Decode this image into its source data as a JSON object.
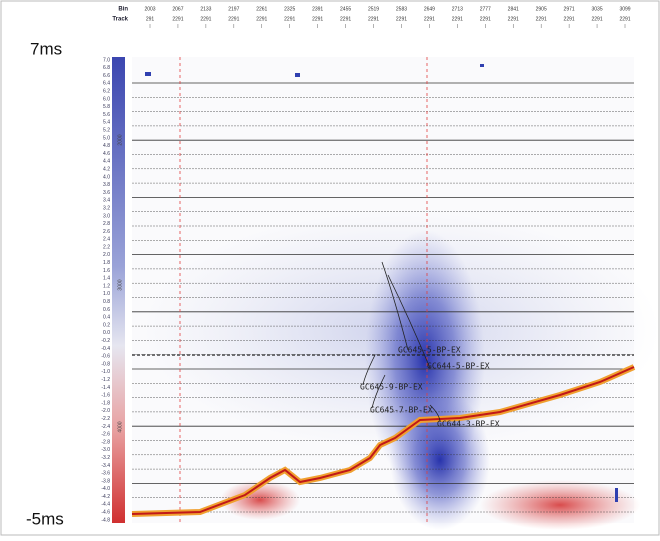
{
  "axis_labels": {
    "top": "7ms",
    "bottom": "-5ms"
  },
  "header": {
    "bin_label": "Bin",
    "track_label": "Track",
    "bins": [
      "2003",
      "2067",
      "2133",
      "2197",
      "2261",
      "2325",
      "2391",
      "2455",
      "2519",
      "2583",
      "2649",
      "2713",
      "2777",
      "2841",
      "2905",
      "2971",
      "3035",
      "3099"
    ],
    "tracks": [
      "291",
      "2291",
      "2291",
      "2291",
      "2291",
      "2291",
      "2291",
      "2291",
      "2291",
      "2291",
      "2291",
      "2291",
      "2291",
      "2291",
      "2291",
      "2291",
      "2291",
      "2291"
    ]
  },
  "color_scale": [
    "7.0",
    "6.8",
    "6.6",
    "6.4",
    "6.2",
    "6.0",
    "5.8",
    "5.6",
    "5.4",
    "5.2",
    "5.0",
    "4.8",
    "4.6",
    "4.4",
    "4.2",
    "4.0",
    "3.8",
    "3.6",
    "3.4",
    "3.2",
    "3.0",
    "2.8",
    "2.6",
    "2.4",
    "2.2",
    "2.0",
    "1.8",
    "1.6",
    "1.4",
    "1.2",
    "1.0",
    "0.8",
    "0.6",
    "0.4",
    "0.2",
    "0.0",
    "-0.2",
    "-0.4",
    "-0.6",
    "-0.8",
    "-1.0",
    "-1.2",
    "-1.4",
    "-1.6",
    "-1.8",
    "-2.0",
    "-2.2",
    "-2.4",
    "-2.6",
    "-2.8",
    "-3.0",
    "-3.2",
    "-3.4",
    "-3.6",
    "-3.8",
    "-4.0",
    "-4.2",
    "-4.4",
    "-4.6",
    "-4.8"
  ],
  "depth_labels": [
    "2000",
    "3000",
    "4000"
  ],
  "well_labels": [
    "GC645-5-BP-EX",
    "GC644-5-BP-EX",
    "GC645-9-BP-EX",
    "GC645-7-BP-EX",
    "GC644-3-BP-EX"
  ]
}
